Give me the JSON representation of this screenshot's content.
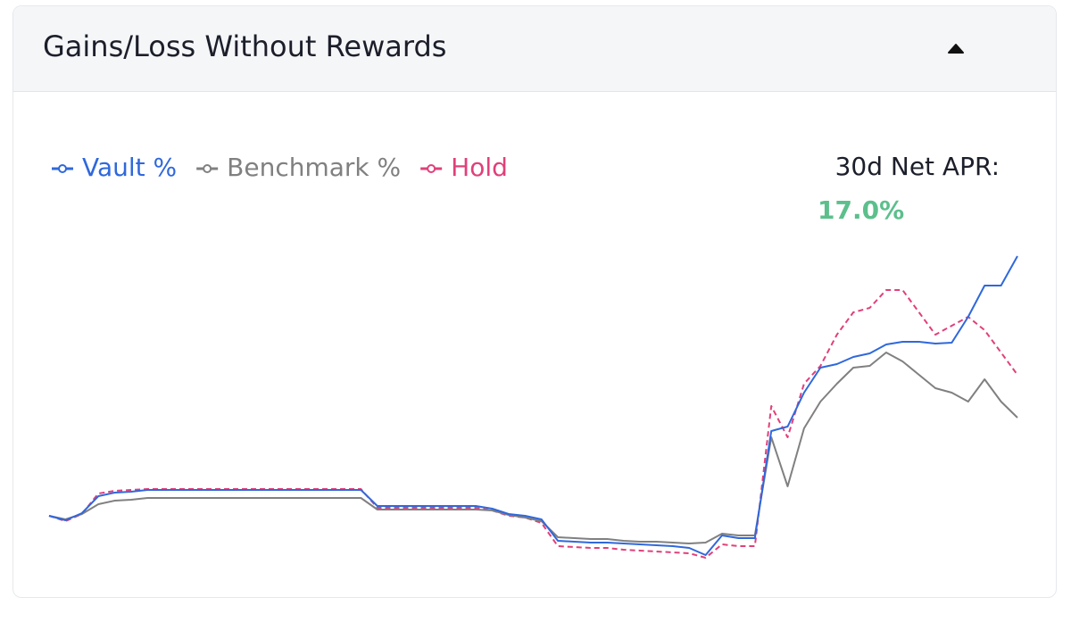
{
  "header": {
    "title": "Gains/Loss Without Rewards"
  },
  "apr": {
    "label": "30d Net APR:",
    "value": "17.0%"
  },
  "chart_data": {
    "type": "line",
    "ylim": [
      -5,
      30
    ],
    "series": [
      {
        "name": "Vault %",
        "color": "#2f68dc",
        "dashed": false,
        "values": [
          0.2,
          -0.3,
          0.5,
          2.4,
          2.8,
          2.9,
          3.1,
          3.1,
          3.1,
          3.1,
          3.1,
          3.1,
          3.1,
          3.1,
          3.1,
          3.1,
          3.1,
          3.1,
          3.1,
          3.1,
          1.3,
          1.3,
          1.3,
          1.3,
          1.3,
          1.3,
          1.3,
          1.0,
          0.4,
          0.2,
          -0.2,
          -2.6,
          -2.7,
          -2.8,
          -2.8,
          -2.9,
          -3.0,
          -3.1,
          -3.2,
          -3.4,
          -4.2,
          -2.0,
          -2.3,
          -2.3,
          9.7,
          10.2,
          14.0,
          16.8,
          17.2,
          18.0,
          18.4,
          19.4,
          19.7,
          19.7,
          19.5,
          19.6,
          22.5,
          26.0,
          26.0,
          29.3
        ]
      },
      {
        "name": "Benchmark %",
        "color": "#808080",
        "dashed": false,
        "values": [
          0.2,
          -0.2,
          0.4,
          1.5,
          1.9,
          2.0,
          2.2,
          2.2,
          2.2,
          2.2,
          2.2,
          2.2,
          2.2,
          2.2,
          2.2,
          2.2,
          2.2,
          2.2,
          2.2,
          2.2,
          0.9,
          0.9,
          0.9,
          0.9,
          0.9,
          0.9,
          0.9,
          0.8,
          0.3,
          0,
          -0.4,
          -2.2,
          -2.3,
          -2.4,
          -2.4,
          -2.6,
          -2.7,
          -2.7,
          -2.8,
          -2.9,
          -2.8,
          -1.8,
          -2.0,
          -2.0,
          9.0,
          3.5,
          10.0,
          13.0,
          15.0,
          16.8,
          17.0,
          18.5,
          17.5,
          16.0,
          14.5,
          14.0,
          13.0,
          15.5,
          13.0,
          11.2
        ]
      },
      {
        "name": "Hold",
        "color": "#e0407a",
        "dashed": true,
        "values": [
          0.2,
          -0.4,
          0.4,
          2.7,
          3.0,
          3.1,
          3.2,
          3.2,
          3.2,
          3.2,
          3.2,
          3.2,
          3.2,
          3.2,
          3.2,
          3.2,
          3.2,
          3.2,
          3.2,
          3.2,
          1.1,
          1.1,
          1.1,
          1.1,
          1.1,
          1.1,
          1.1,
          0.8,
          0.2,
          0,
          -0.6,
          -3.2,
          -3.3,
          -3.4,
          -3.4,
          -3.6,
          -3.7,
          -3.8,
          -3.9,
          -4.0,
          -4.5,
          -3.0,
          -3.2,
          -3.2,
          12.5,
          9.0,
          15.0,
          17.0,
          20.5,
          23.0,
          23.5,
          25.5,
          25.5,
          23.0,
          20.5,
          21.5,
          22.5,
          21.0,
          18.5,
          16.0
        ]
      }
    ]
  }
}
